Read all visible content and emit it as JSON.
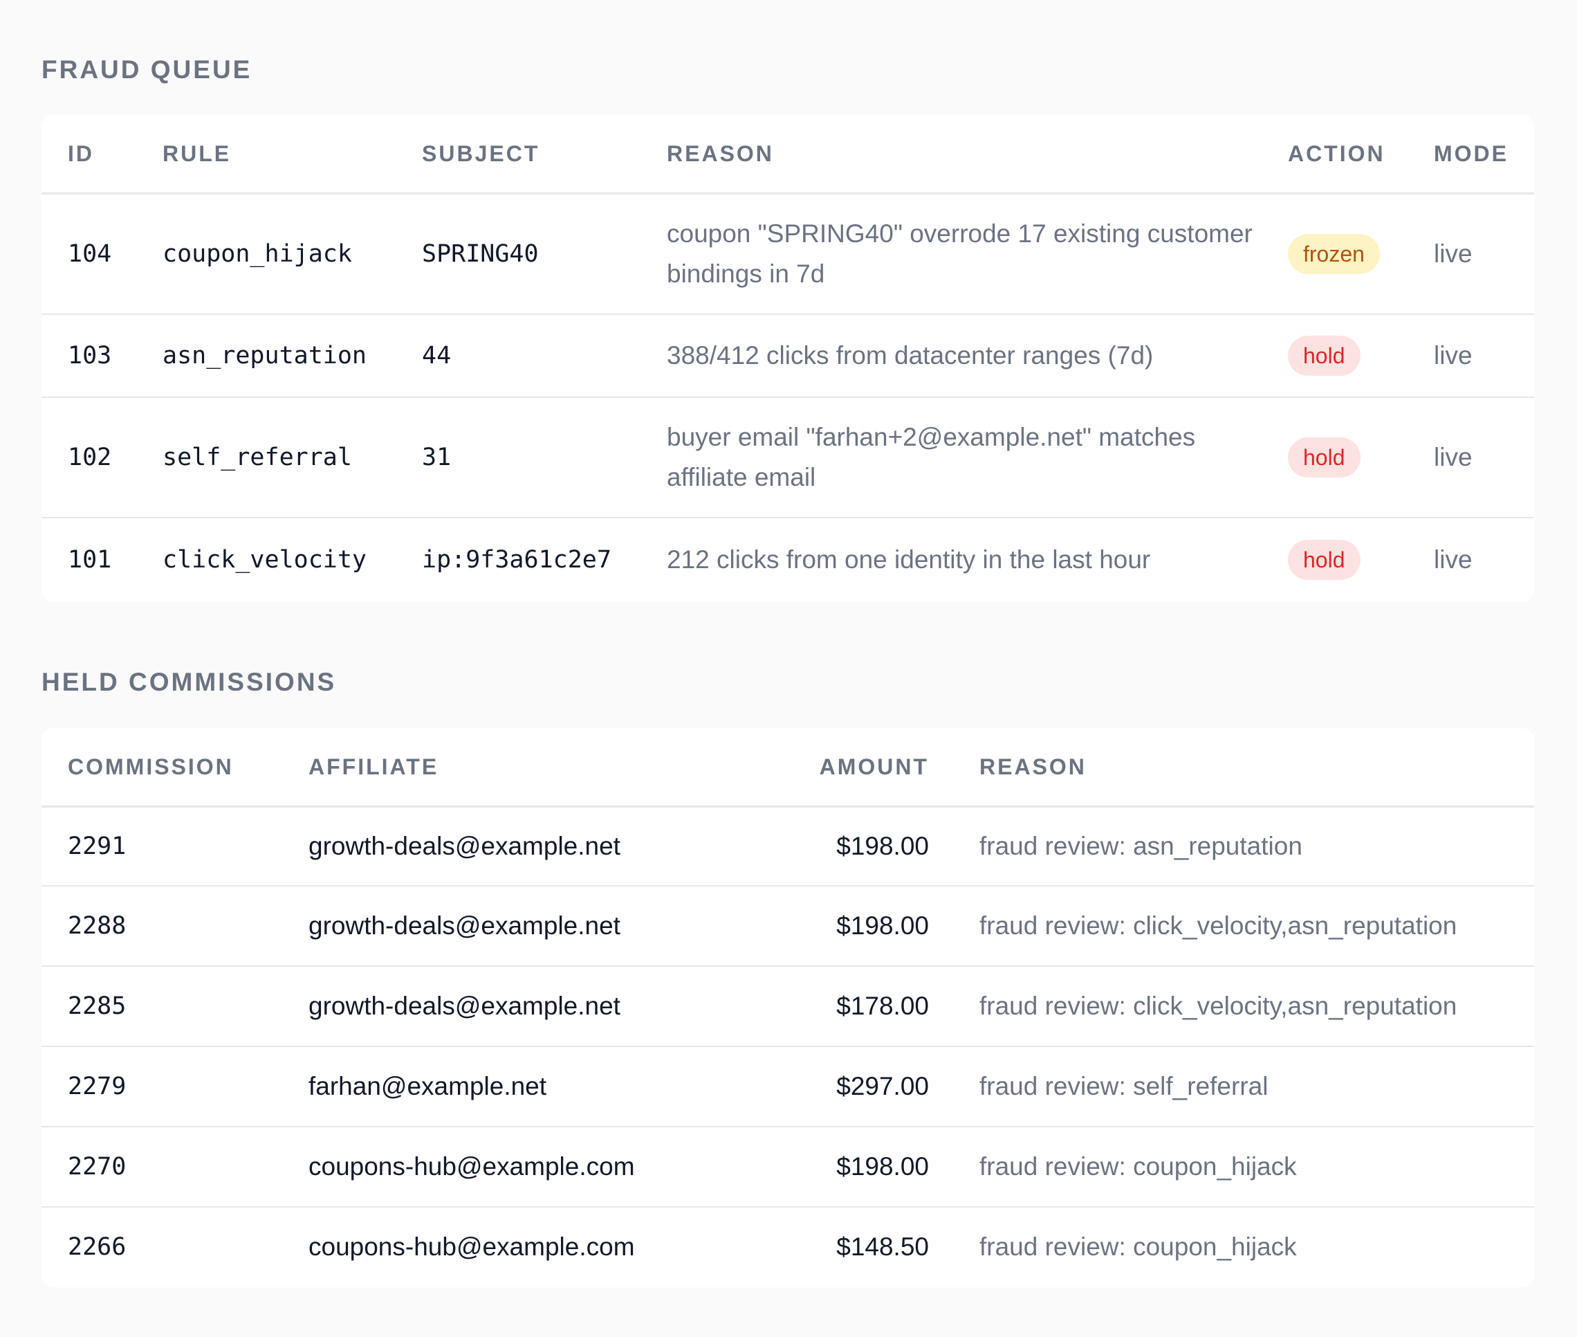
{
  "fraud_queue": {
    "title": "FRAUD QUEUE",
    "headers": {
      "id": "ID",
      "rule": "RULE",
      "subject": "SUBJECT",
      "reason": "REASON",
      "action": "ACTION",
      "mode": "MODE"
    },
    "rows": [
      {
        "id": "104",
        "rule": "coupon_hijack",
        "subject": "SPRING40",
        "reason": "coupon \"SPRING40\" overrode 17 existing customer bindings in 7d",
        "action": "frozen",
        "mode": "live"
      },
      {
        "id": "103",
        "rule": "asn_reputation",
        "subject": "44",
        "reason": "388/412 clicks from datacenter ranges (7d)",
        "action": "hold",
        "mode": "live"
      },
      {
        "id": "102",
        "rule": "self_referral",
        "subject": "31",
        "reason": "buyer email \"farhan+2@example.net\" matches affiliate email",
        "action": "hold",
        "mode": "live"
      },
      {
        "id": "101",
        "rule": "click_velocity",
        "subject": "ip:9f3a61c2e7",
        "reason": "212 clicks from one identity in the last hour",
        "action": "hold",
        "mode": "live"
      }
    ]
  },
  "held_commissions": {
    "title": "HELD COMMISSIONS",
    "headers": {
      "commission": "COMMISSION",
      "affiliate": "AFFILIATE",
      "amount": "AMOUNT",
      "reason": "REASON"
    },
    "rows": [
      {
        "commission": "2291",
        "affiliate": "growth-deals@example.net",
        "amount": "$198.00",
        "reason": "fraud review: asn_reputation"
      },
      {
        "commission": "2288",
        "affiliate": "growth-deals@example.net",
        "amount": "$198.00",
        "reason": "fraud review: click_velocity,asn_reputation"
      },
      {
        "commission": "2285",
        "affiliate": "growth-deals@example.net",
        "amount": "$178.00",
        "reason": "fraud review: click_velocity,asn_reputation"
      },
      {
        "commission": "2279",
        "affiliate": "farhan@example.net",
        "amount": "$297.00",
        "reason": "fraud review: self_referral"
      },
      {
        "commission": "2270",
        "affiliate": "coupons-hub@example.com",
        "amount": "$198.00",
        "reason": "fraud review: coupon_hijack"
      },
      {
        "commission": "2266",
        "affiliate": "coupons-hub@example.com",
        "amount": "$148.50",
        "reason": "fraud review: coupon_hijack"
      }
    ]
  },
  "colors": {
    "frozen_bg": "#fdf3c4",
    "frozen_fg": "#b45309",
    "hold_bg": "#fde2e2",
    "hold_fg": "#dc2626"
  }
}
